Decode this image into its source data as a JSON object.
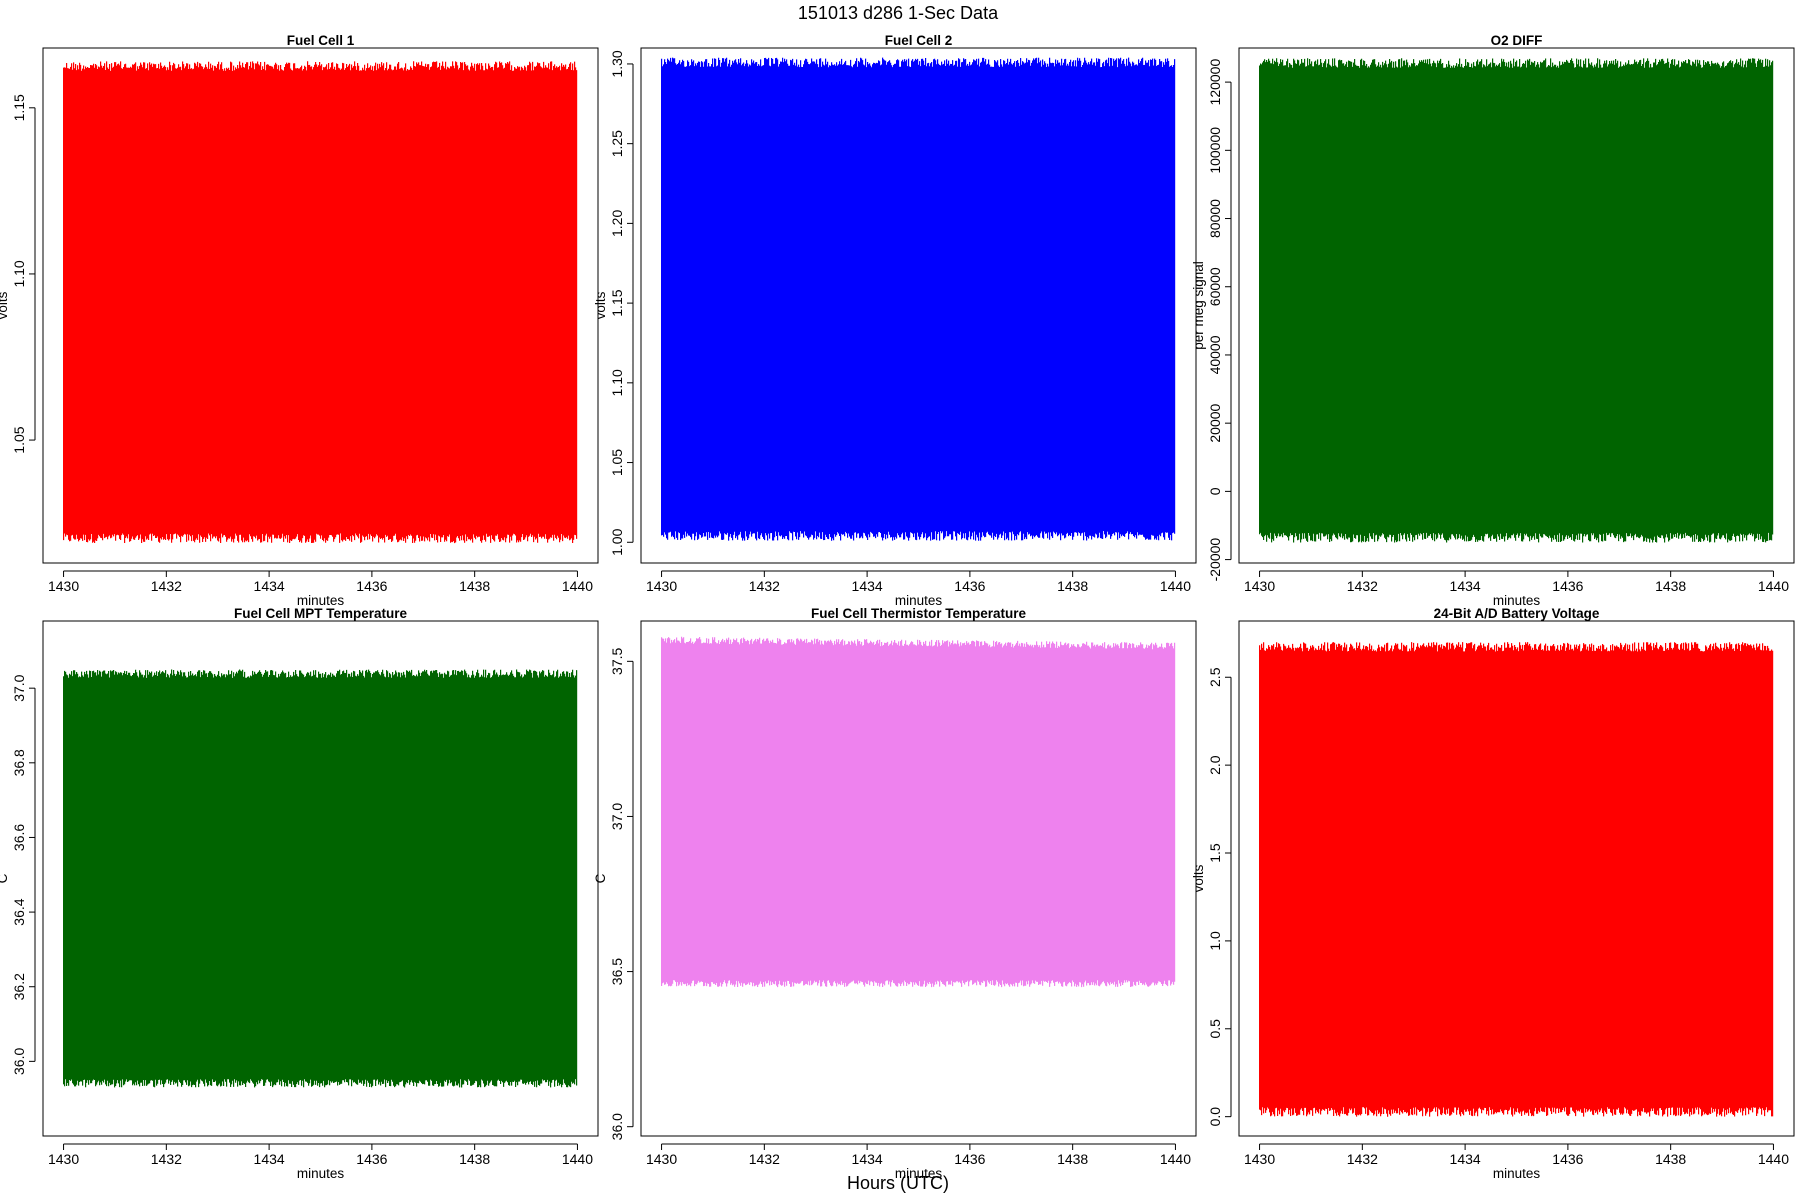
{
  "figure": {
    "main_title": "151013   d286   1-Sec Data",
    "outer_xlabel": "Hours (UTC)"
  },
  "chart_data": [
    {
      "type": "line",
      "title": "Fuel Cell 1",
      "xlabel": "minutes",
      "ylabel": "volts",
      "color": "#ff0000",
      "xlim": [
        1429.6,
        1440.4
      ],
      "ylim": [
        1.013,
        1.168
      ],
      "xticks": [
        1430,
        1432,
        1434,
        1436,
        1438,
        1440
      ],
      "yticks": [
        1.05,
        1.1,
        1.15
      ],
      "ytick_labels": [
        "1.05",
        "1.10",
        "1.15"
      ],
      "envelope": {
        "x": [
          1430,
          1440
        ],
        "upper": [
          1.164,
          1.164
        ],
        "lower": [
          1.019,
          1.019
        ]
      }
    },
    {
      "type": "line",
      "title": "Fuel Cell 2",
      "xlabel": "minutes",
      "ylabel": "volts",
      "color": "#0000ff",
      "xlim": [
        1429.6,
        1440.4
      ],
      "ylim": [
        0.987,
        1.31
      ],
      "xticks": [
        1430,
        1432,
        1434,
        1436,
        1438,
        1440
      ],
      "yticks": [
        1.0,
        1.05,
        1.1,
        1.15,
        1.2,
        1.25,
        1.3
      ],
      "ytick_labels": [
        "1.00",
        "1.05",
        "1.10",
        "1.15",
        "1.20",
        "1.25",
        "1.30"
      ],
      "envelope": {
        "x": [
          1430,
          1440
        ],
        "upper": [
          1.304,
          1.304
        ],
        "lower": [
          1.001,
          1.001
        ]
      }
    },
    {
      "type": "line",
      "title": "O2 DIFF",
      "xlabel": "minutes",
      "ylabel": "per meg signal",
      "color": "#006400",
      "xlim": [
        1429.6,
        1440.4
      ],
      "ylim": [
        -21000,
        130000
      ],
      "xticks": [
        1430,
        1432,
        1434,
        1436,
        1438,
        1440
      ],
      "yticks": [
        -20000,
        0,
        20000,
        40000,
        60000,
        80000,
        100000,
        120000
      ],
      "ytick_labels": [
        "-20000",
        "0",
        "20000",
        "40000",
        "60000",
        "80000",
        "100000",
        "120000"
      ],
      "envelope": {
        "x": [
          1430,
          1440
        ],
        "upper": [
          127000,
          127000
        ],
        "lower": [
          -15000,
          -15000
        ]
      }
    },
    {
      "type": "line",
      "title": "Fuel Cell MPT Temperature",
      "xlabel": "minutes",
      "ylabel": "C",
      "color": "#006400",
      "xlim": [
        1429.6,
        1440.4
      ],
      "ylim": [
        35.8,
        37.18
      ],
      "xticks": [
        1430,
        1432,
        1434,
        1436,
        1438,
        1440
      ],
      "yticks": [
        36.0,
        36.2,
        36.4,
        36.6,
        36.8,
        37.0
      ],
      "ytick_labels": [
        "36.0",
        "36.2",
        "36.4",
        "36.6",
        "36.8",
        "37.0"
      ],
      "envelope": {
        "x": [
          1430,
          1440
        ],
        "upper": [
          37.05,
          37.05
        ],
        "lower": [
          35.93,
          35.93
        ]
      }
    },
    {
      "type": "line",
      "title": "Fuel Cell Thermistor Temperature",
      "xlabel": "minutes",
      "ylabel": "C",
      "color": "#ee82ee",
      "xlim": [
        1429.6,
        1440.4
      ],
      "ylim": [
        35.97,
        37.63
      ],
      "xticks": [
        1430,
        1432,
        1434,
        1436,
        1438,
        1440
      ],
      "yticks": [
        36.0,
        36.5,
        37.0,
        37.5
      ],
      "ytick_labels": [
        "36.0",
        "36.5",
        "37.0",
        "37.5"
      ],
      "envelope": {
        "x": [
          1430,
          1440
        ],
        "upper": [
          37.58,
          37.56
        ],
        "lower": [
          36.45,
          36.45
        ]
      }
    },
    {
      "type": "line",
      "title": "24-Bit A/D Battery Voltage",
      "xlabel": "minutes",
      "ylabel": "volts",
      "color": "#ff0000",
      "xlim": [
        1429.6,
        1440.4
      ],
      "ylim": [
        -0.11,
        2.82
      ],
      "xticks": [
        1430,
        1432,
        1434,
        1436,
        1438,
        1440
      ],
      "yticks": [
        0.0,
        0.5,
        1.0,
        1.5,
        2.0,
        2.5
      ],
      "ytick_labels": [
        "0.0",
        "0.5",
        "1.0",
        "1.5",
        "2.0",
        "2.5"
      ],
      "envelope": {
        "x": [
          1430,
          1440
        ],
        "upper": [
          2.7,
          2.7
        ],
        "lower": [
          0.0,
          0.0
        ]
      }
    }
  ]
}
